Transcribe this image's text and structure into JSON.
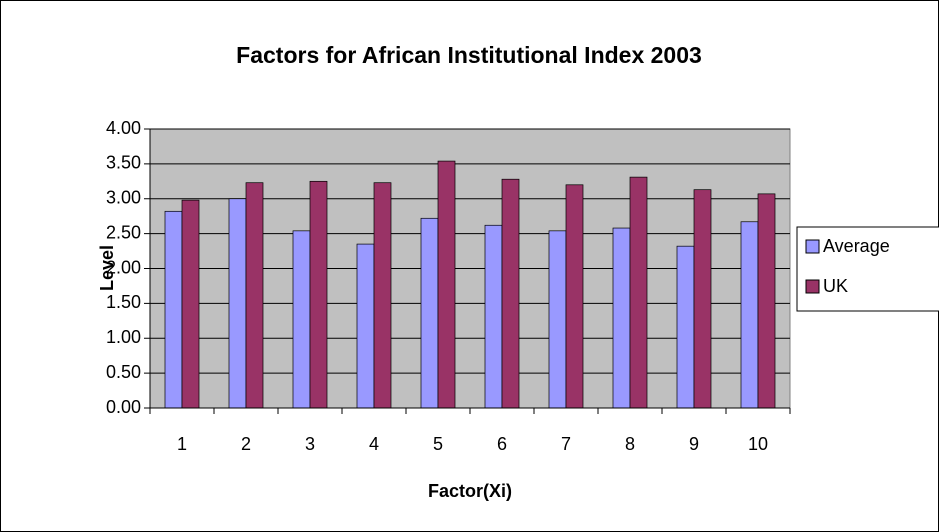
{
  "chart_data": {
    "type": "bar",
    "title": "Factors for African Institutional Index 2003",
    "x_label": "Factor(Xi)",
    "y_label": "Level",
    "categories": [
      "1",
      "2",
      "3",
      "4",
      "5",
      "6",
      "7",
      "8",
      "9",
      "10"
    ],
    "series": [
      {
        "name": "Average",
        "color": "#9999ff",
        "values": [
          2.82,
          3.0,
          2.54,
          2.35,
          2.72,
          2.62,
          2.54,
          2.58,
          2.32,
          2.67
        ]
      },
      {
        "name": "UK",
        "color": "#993366",
        "values": [
          2.98,
          3.23,
          3.25,
          3.23,
          3.54,
          3.28,
          3.2,
          3.31,
          3.13,
          3.07
        ]
      }
    ],
    "ylim": [
      0,
      4
    ],
    "yticks": [
      {
        "value": 0,
        "label": "0.00"
      },
      {
        "value": 0.5,
        "label": "0.50"
      },
      {
        "value": 1,
        "label": "1.00"
      },
      {
        "value": 1.5,
        "label": "1.50"
      },
      {
        "value": 2,
        "label": "2.00"
      },
      {
        "value": 2.5,
        "label": "2.50"
      },
      {
        "value": 3,
        "label": "3.00"
      },
      {
        "value": 3.5,
        "label": "3.50"
      },
      {
        "value": 4,
        "label": "4.00"
      }
    ],
    "grid": true,
    "legend": "right",
    "plot_background": "#c0c0c0"
  }
}
